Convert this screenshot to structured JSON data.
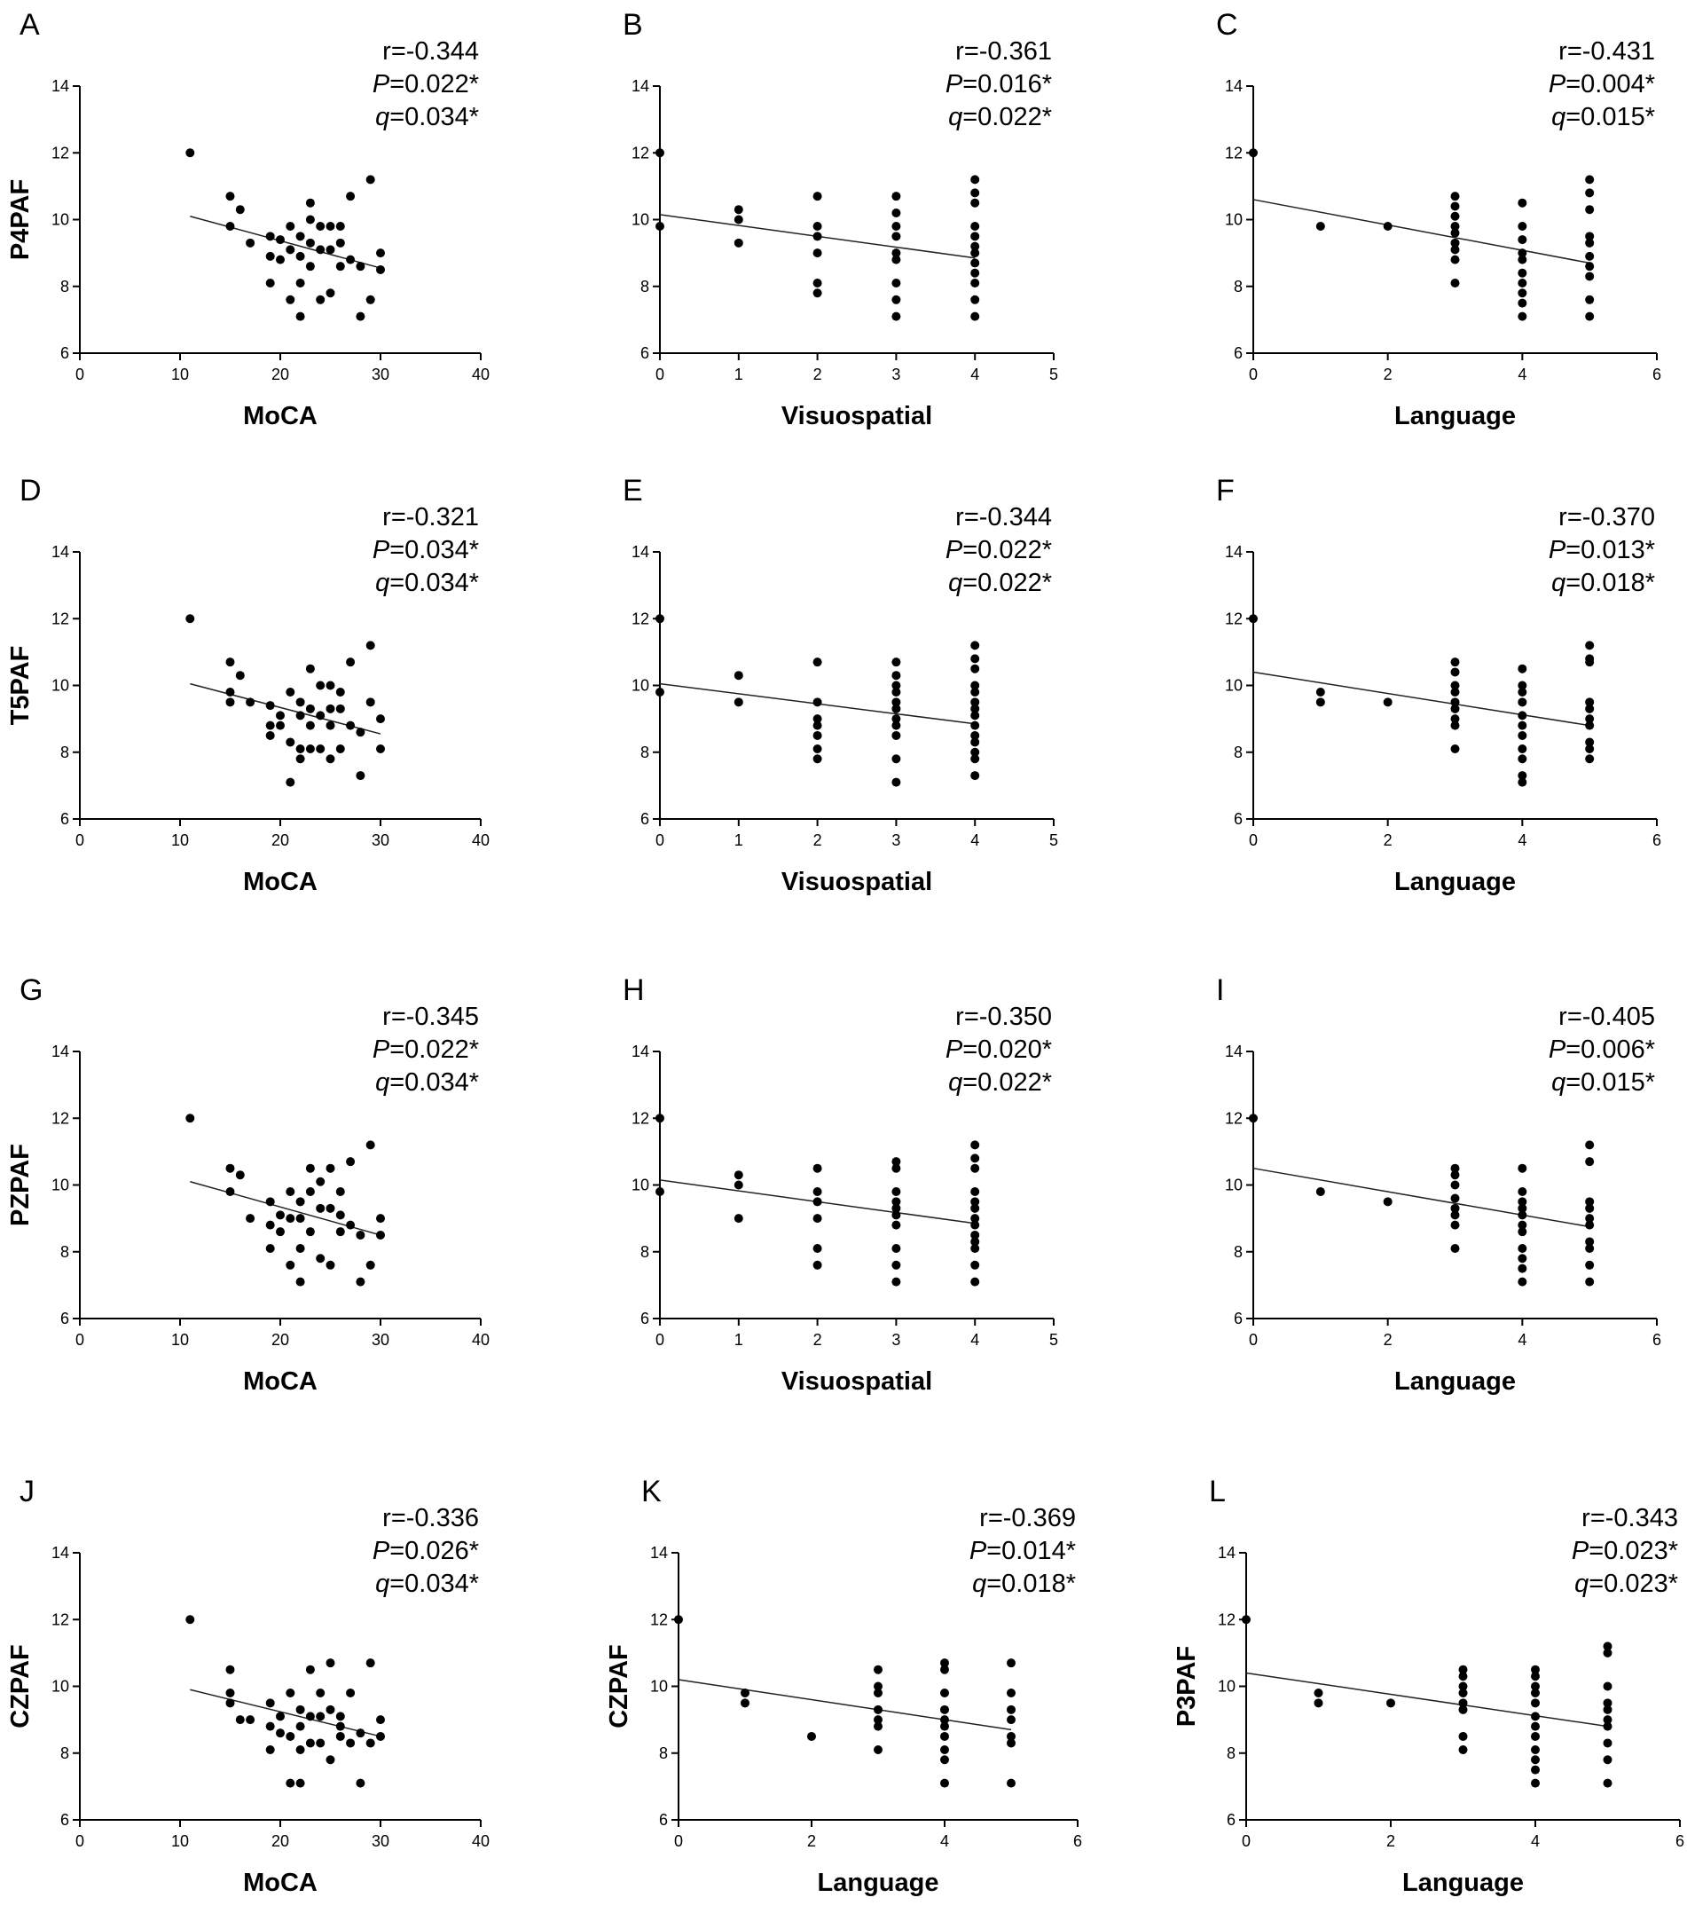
{
  "chart_data": [
    {
      "panel": "A",
      "type": "scatter",
      "ylabel": "P4PAF",
      "xlabel": "MoCA",
      "xlim": [
        0,
        40
      ],
      "xticks": [
        0,
        10,
        20,
        30,
        40
      ],
      "ylim": [
        6,
        14
      ],
      "yticks": [
        6,
        8,
        10,
        12,
        14
      ],
      "stats": {
        "r": "r=-0.344",
        "p_label": "P",
        "p_value": "=0.022*",
        "q_label": "q",
        "q_value": "=0.034*"
      },
      "fit": {
        "x": [
          11,
          30
        ],
        "y": [
          10.1,
          8.55
        ]
      },
      "x": [
        11,
        15,
        15,
        16,
        17,
        19,
        19,
        19,
        20,
        20,
        21,
        21,
        21,
        22,
        22,
        22,
        22,
        23,
        23,
        23,
        23,
        24,
        24,
        24,
        25,
        25,
        25,
        26,
        26,
        26,
        27,
        27,
        28,
        28,
        29,
        29,
        30,
        30
      ],
      "y": [
        12,
        10.7,
        9.8,
        10.3,
        9.3,
        9.5,
        8.9,
        8.1,
        9.4,
        8.8,
        9.8,
        9.1,
        7.6,
        9.5,
        8.9,
        8.1,
        7.1,
        10.5,
        10,
        9.3,
        8.6,
        9.8,
        9.1,
        7.6,
        9.8,
        9.1,
        7.8,
        9.8,
        9.3,
        8.6,
        10.7,
        8.8,
        8.6,
        7.1,
        11.2,
        7.6,
        9,
        8.5
      ]
    },
    {
      "panel": "B",
      "type": "scatter",
      "ylabel": "",
      "xlabel": "Visuospatial",
      "xlim": [
        0,
        5
      ],
      "xticks": [
        0,
        1,
        2,
        3,
        4,
        5
      ],
      "ylim": [
        6,
        14
      ],
      "yticks": [
        6,
        8,
        10,
        12,
        14
      ],
      "stats": {
        "r": "r=-0.361",
        "p_label": "P",
        "p_value": "=0.016*",
        "q_label": "q",
        "q_value": "=0.022*"
      },
      "fit": {
        "x": [
          0,
          4
        ],
        "y": [
          10.15,
          8.85
        ]
      },
      "x": [
        0,
        0,
        1,
        1,
        1,
        2,
        2,
        2,
        2,
        2,
        2,
        3,
        3,
        3,
        3,
        3,
        3,
        3,
        3,
        3,
        4,
        4,
        4,
        4,
        4,
        4,
        4,
        4,
        4,
        4,
        4,
        4
      ],
      "y": [
        12,
        9.8,
        10.3,
        10,
        9.3,
        10.7,
        9.8,
        9.5,
        9,
        8.1,
        7.8,
        10.7,
        10.2,
        9.8,
        9.5,
        9,
        8.8,
        8.1,
        7.6,
        7.1,
        11.2,
        10.8,
        10.5,
        9.8,
        9.5,
        9.2,
        9,
        8.7,
        8.4,
        8.1,
        7.6,
        7.1
      ]
    },
    {
      "panel": "C",
      "type": "scatter",
      "ylabel": "",
      "xlabel": "Language",
      "xlim": [
        0,
        6
      ],
      "xticks": [
        0,
        2,
        4,
        6
      ],
      "ylim": [
        6,
        14
      ],
      "yticks": [
        6,
        8,
        10,
        12,
        14
      ],
      "stats": {
        "r": "r=-0.431",
        "p_label": "P",
        "p_value": "=0.004*",
        "q_label": "q",
        "q_value": "=0.015*"
      },
      "fit": {
        "x": [
          0,
          5
        ],
        "y": [
          10.6,
          8.7
        ]
      },
      "x": [
        0,
        1,
        2,
        3,
        3,
        3,
        3,
        3,
        3,
        3,
        3,
        3,
        4,
        4,
        4,
        4,
        4,
        4,
        4,
        4,
        4,
        4,
        5,
        5,
        5,
        5,
        5,
        5,
        5,
        5,
        5,
        5
      ],
      "y": [
        12,
        9.8,
        9.8,
        10.7,
        10.4,
        10.1,
        9.8,
        9.6,
        9.3,
        9.1,
        8.8,
        8.1,
        10.5,
        9.8,
        9.4,
        9,
        8.8,
        8.4,
        8.1,
        7.8,
        7.5,
        7.1,
        11.2,
        10.8,
        10.3,
        9.5,
        9.3,
        8.9,
        8.6,
        8.3,
        7.6,
        7.1
      ]
    },
    {
      "panel": "D",
      "type": "scatter",
      "ylabel": "T5PAF",
      "xlabel": "MoCA",
      "xlim": [
        0,
        40
      ],
      "xticks": [
        0,
        10,
        20,
        30,
        40
      ],
      "ylim": [
        6,
        14
      ],
      "yticks": [
        6,
        8,
        10,
        12,
        14
      ],
      "stats": {
        "r": "r=-0.321",
        "p_label": "P",
        "p_value": "=0.034*",
        "q_label": "q",
        "q_value": "=0.034*"
      },
      "fit": {
        "x": [
          11,
          30
        ],
        "y": [
          10.05,
          8.55
        ]
      },
      "x": [
        11,
        15,
        15,
        15,
        16,
        17,
        19,
        19,
        19,
        20,
        20,
        21,
        21,
        21,
        22,
        22,
        22,
        22,
        23,
        23,
        23,
        23,
        24,
        24,
        24,
        25,
        25,
        25,
        25,
        26,
        26,
        26,
        27,
        27,
        28,
        28,
        29,
        29,
        30,
        30
      ],
      "y": [
        12,
        10.7,
        9.8,
        9.5,
        10.3,
        9.5,
        9.4,
        8.8,
        8.5,
        9.1,
        8.8,
        9.8,
        8.3,
        7.1,
        9.5,
        9.1,
        8.1,
        7.8,
        10.5,
        9.3,
        8.8,
        8.1,
        10,
        9.1,
        8.1,
        10,
        9.3,
        8.8,
        7.8,
        9.8,
        9.3,
        8.1,
        10.7,
        8.8,
        8.6,
        7.3,
        11.2,
        9.5,
        9,
        8.1
      ]
    },
    {
      "panel": "E",
      "type": "scatter",
      "ylabel": "",
      "xlabel": "Visuospatial",
      "xlim": [
        0,
        5
      ],
      "xticks": [
        0,
        1,
        2,
        3,
        4,
        5
      ],
      "ylim": [
        6,
        14
      ],
      "yticks": [
        6,
        8,
        10,
        12,
        14
      ],
      "stats": {
        "r": "r=-0.344",
        "p_label": "P",
        "p_value": "=0.022*",
        "q_label": "q",
        "q_value": "=0.022*"
      },
      "fit": {
        "x": [
          0,
          4
        ],
        "y": [
          10.05,
          8.85
        ]
      },
      "x": [
        0,
        0,
        1,
        1,
        2,
        2,
        2,
        2,
        2,
        2,
        2,
        3,
        3,
        3,
        3,
        3,
        3,
        3,
        3,
        3,
        3,
        3,
        4,
        4,
        4,
        4,
        4,
        4,
        4,
        4,
        4,
        4,
        4,
        4,
        4,
        4
      ],
      "y": [
        12,
        9.8,
        10.3,
        9.5,
        10.7,
        9.5,
        9,
        8.8,
        8.5,
        8.1,
        7.8,
        10.7,
        10.3,
        10,
        9.8,
        9.5,
        9.3,
        9,
        8.8,
        8.5,
        7.8,
        7.1,
        11.2,
        10.8,
        10.5,
        10,
        9.8,
        9.5,
        9.3,
        9.1,
        8.8,
        8.5,
        8.3,
        8,
        7.8,
        7.3
      ]
    },
    {
      "panel": "F",
      "type": "scatter",
      "ylabel": "",
      "xlabel": "Language",
      "xlim": [
        0,
        6
      ],
      "xticks": [
        0,
        2,
        4,
        6
      ],
      "ylim": [
        6,
        14
      ],
      "yticks": [
        6,
        8,
        10,
        12,
        14
      ],
      "stats": {
        "r": "r=-0.370",
        "p_label": "P",
        "p_value": "=0.013*",
        "q_label": "q",
        "q_value": "=0.018*"
      },
      "fit": {
        "x": [
          0,
          5
        ],
        "y": [
          10.4,
          8.8
        ]
      },
      "x": [
        0,
        1,
        1,
        2,
        3,
        3,
        3,
        3,
        3,
        3,
        3,
        3,
        3,
        4,
        4,
        4,
        4,
        4,
        4,
        4,
        4,
        4,
        4,
        4,
        5,
        5,
        5,
        5,
        5,
        5,
        5,
        5,
        5,
        5
      ],
      "y": [
        12,
        9.8,
        9.5,
        9.5,
        10.7,
        10.4,
        10,
        9.8,
        9.5,
        9.3,
        9,
        8.8,
        8.1,
        10.5,
        10,
        9.8,
        9.5,
        9.1,
        8.8,
        8.5,
        8.1,
        7.8,
        7.3,
        7.1,
        11.2,
        10.8,
        10.7,
        9.5,
        9.3,
        9,
        8.8,
        8.3,
        8.1,
        7.8
      ]
    },
    {
      "panel": "G",
      "type": "scatter",
      "ylabel": "PZPAF",
      "xlabel": "MoCA",
      "xlim": [
        0,
        40
      ],
      "xticks": [
        0,
        10,
        20,
        30,
        40
      ],
      "ylim": [
        6,
        14
      ],
      "yticks": [
        6,
        8,
        10,
        12,
        14
      ],
      "stats": {
        "r": "r=-0.345",
        "p_label": "P",
        "p_value": "=0.022*",
        "q_label": "q",
        "q_value": "=0.034*"
      },
      "fit": {
        "x": [
          11,
          30
        ],
        "y": [
          10.1,
          8.5
        ]
      },
      "x": [
        11,
        15,
        15,
        16,
        17,
        19,
        19,
        19,
        20,
        20,
        21,
        21,
        21,
        22,
        22,
        22,
        22,
        23,
        23,
        23,
        24,
        24,
        24,
        25,
        25,
        25,
        26,
        26,
        26,
        27,
        27,
        28,
        28,
        29,
        29,
        30,
        30
      ],
      "y": [
        12,
        10.5,
        9.8,
        10.3,
        9,
        9.5,
        8.8,
        8.1,
        9.1,
        8.6,
        9.8,
        9,
        7.6,
        9.5,
        9,
        8.1,
        7.1,
        10.5,
        9.8,
        8.6,
        10.1,
        9.3,
        7.8,
        10.5,
        9.3,
        7.6,
        9.8,
        9.1,
        8.6,
        10.7,
        8.8,
        8.5,
        7.1,
        11.2,
        7.6,
        9,
        8.5
      ]
    },
    {
      "panel": "H",
      "type": "scatter",
      "ylabel": "",
      "xlabel": "Visuospatial",
      "xlim": [
        0,
        5
      ],
      "xticks": [
        0,
        1,
        2,
        3,
        4,
        5
      ],
      "ylim": [
        6,
        14
      ],
      "yticks": [
        6,
        8,
        10,
        12,
        14
      ],
      "stats": {
        "r": "r=-0.350",
        "p_label": "P",
        "p_value": "=0.020*",
        "q_label": "q",
        "q_value": "=0.022*"
      },
      "fit": {
        "x": [
          0,
          4
        ],
        "y": [
          10.15,
          8.85
        ]
      },
      "x": [
        0,
        0,
        1,
        1,
        1,
        2,
        2,
        2,
        2,
        2,
        2,
        3,
        3,
        3,
        3,
        3,
        3,
        3,
        3,
        3,
        3,
        4,
        4,
        4,
        4,
        4,
        4,
        4,
        4,
        4,
        4,
        4,
        4,
        4
      ],
      "y": [
        12,
        9.8,
        10.3,
        10,
        9,
        10.5,
        9.8,
        9.5,
        9,
        8.1,
        7.6,
        10.7,
        10.5,
        9.8,
        9.5,
        9.1,
        8.8,
        8.1,
        7.6,
        7.1,
        9.3,
        11.2,
        10.8,
        10.5,
        9.8,
        9.5,
        9.3,
        9,
        8.8,
        8.5,
        8.3,
        8.1,
        7.6,
        7.1
      ]
    },
    {
      "panel": "I",
      "type": "scatter",
      "ylabel": "",
      "xlabel": "Language",
      "xlim": [
        0,
        6
      ],
      "xticks": [
        0,
        2,
        4,
        6
      ],
      "ylim": [
        6,
        14
      ],
      "yticks": [
        6,
        8,
        10,
        12,
        14
      ],
      "stats": {
        "r": "r=-0.405",
        "p_label": "P",
        "p_value": "=0.006*",
        "q_label": "q",
        "q_value": "=0.015*"
      },
      "fit": {
        "x": [
          0,
          5
        ],
        "y": [
          10.5,
          8.75
        ]
      },
      "x": [
        0,
        1,
        2,
        3,
        3,
        3,
        3,
        3,
        3,
        3,
        3,
        4,
        4,
        4,
        4,
        4,
        4,
        4,
        4,
        4,
        4,
        4,
        5,
        5,
        5,
        5,
        5,
        5,
        5,
        5,
        5,
        5
      ],
      "y": [
        12,
        9.8,
        9.5,
        10.5,
        10.3,
        10,
        9.6,
        9.3,
        9.1,
        8.8,
        8.1,
        10.5,
        9.8,
        9.5,
        9.1,
        8.8,
        8.6,
        8.1,
        7.8,
        7.5,
        7.1,
        9.3,
        11.2,
        10.7,
        9.5,
        9.3,
        9,
        8.8,
        8.3,
        8.1,
        7.6,
        7.1
      ]
    },
    {
      "panel": "J",
      "type": "scatter",
      "ylabel": "CZPAF",
      "xlabel": "MoCA",
      "xlim": [
        0,
        40
      ],
      "xticks": [
        0,
        10,
        20,
        30,
        40
      ],
      "ylim": [
        6,
        14
      ],
      "yticks": [
        6,
        8,
        10,
        12,
        14
      ],
      "stats": {
        "r": "r=-0.336",
        "p_label": "P",
        "p_value": "=0.026*",
        "q_label": "q",
        "q_value": "=0.034*"
      },
      "fit": {
        "x": [
          11,
          30
        ],
        "y": [
          9.9,
          8.5
        ]
      },
      "x": [
        11,
        15,
        15,
        15,
        16,
        17,
        19,
        19,
        19,
        20,
        20,
        21,
        21,
        21,
        22,
        22,
        22,
        22,
        23,
        23,
        23,
        24,
        24,
        24,
        25,
        25,
        25,
        26,
        26,
        26,
        27,
        27,
        28,
        28,
        29,
        29,
        30,
        30
      ],
      "y": [
        12,
        10.5,
        9.8,
        9.5,
        9,
        9,
        9.5,
        8.8,
        8.1,
        9.1,
        8.6,
        9.8,
        8.5,
        7.1,
        9.3,
        8.8,
        8.1,
        7.1,
        10.5,
        9.1,
        8.3,
        9.8,
        9.1,
        8.3,
        10.7,
        9.3,
        7.8,
        9.1,
        8.5,
        8.8,
        9.8,
        8.3,
        8.6,
        7.1,
        10.7,
        8.3,
        9,
        8.5
      ]
    },
    {
      "panel": "K",
      "type": "scatter",
      "ylabel": "CZPAF",
      "xlabel": "Language",
      "xlim": [
        0,
        6
      ],
      "xticks": [
        0,
        2,
        4,
        6
      ],
      "ylim": [
        6,
        14
      ],
      "yticks": [
        6,
        8,
        10,
        12,
        14
      ],
      "stats": {
        "r": "r=-0.369",
        "p_label": "P",
        "p_value": "=0.014*",
        "q_label": "q",
        "q_value": "=0.018*"
      },
      "fit": {
        "x": [
          0,
          5
        ],
        "y": [
          10.2,
          8.7
        ]
      },
      "x": [
        0,
        1,
        1,
        2,
        3,
        3,
        3,
        3,
        3,
        3,
        3,
        4,
        4,
        4,
        4,
        4,
        4,
        4,
        4,
        4,
        4,
        5,
        5,
        5,
        5,
        5,
        5,
        5
      ],
      "y": [
        12,
        9.8,
        9.5,
        8.5,
        10.5,
        10,
        9.8,
        9.3,
        9,
        8.8,
        8.1,
        10.7,
        10.5,
        9.8,
        9.3,
        9,
        8.8,
        8.5,
        8.1,
        7.8,
        7.1,
        10.7,
        9.8,
        9.3,
        9,
        8.5,
        8.3,
        7.1
      ]
    },
    {
      "panel": "L",
      "type": "scatter",
      "ylabel": "P3PAF",
      "xlabel": "Language",
      "xlim": [
        0,
        6
      ],
      "xticks": [
        0,
        2,
        4,
        6
      ],
      "ylim": [
        6,
        14
      ],
      "yticks": [
        6,
        8,
        10,
        12,
        14
      ],
      "stats": {
        "r": "r=-0.343",
        "p_label": "P",
        "p_value": "=0.023*",
        "q_label": "q",
        "q_value": "=0.023*"
      },
      "fit": {
        "x": [
          0,
          5
        ],
        "y": [
          10.4,
          8.8
        ]
      },
      "x": [
        0,
        1,
        1,
        2,
        3,
        3,
        3,
        3,
        3,
        3,
        3,
        3,
        4,
        4,
        4,
        4,
        4,
        4,
        4,
        4,
        4,
        4,
        4,
        4,
        5,
        5,
        5,
        5,
        5,
        5,
        5,
        5,
        5,
        5
      ],
      "y": [
        12,
        9.8,
        9.5,
        9.5,
        10.5,
        10.3,
        10,
        9.5,
        9.3,
        8.5,
        8.1,
        9.8,
        10.5,
        10.3,
        10,
        9.8,
        9.5,
        9.1,
        8.8,
        8.5,
        8.1,
        7.8,
        7.5,
        7.1,
        11.2,
        11,
        10,
        9.5,
        9.3,
        9,
        8.8,
        8.3,
        7.8,
        7.1
      ]
    }
  ]
}
